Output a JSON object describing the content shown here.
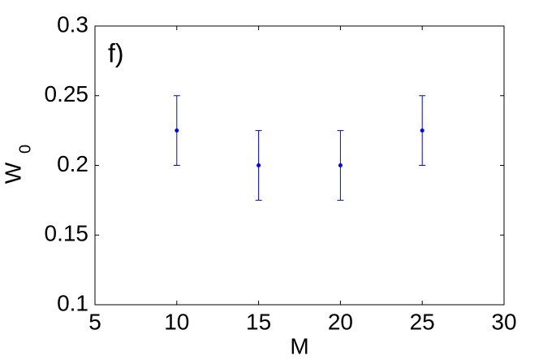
{
  "chart_data": {
    "type": "errorbar",
    "annotation": "f)",
    "xlabel": "M",
    "ylabel": "W",
    "ylabel_subscript": "0",
    "x": [
      10,
      15,
      20,
      25
    ],
    "values": [
      0.225,
      0.2,
      0.2,
      0.225
    ],
    "errors": [
      0.025,
      0.025,
      0.025,
      0.025
    ],
    "color": "#0000ff",
    "xlim": [
      5,
      30
    ],
    "xticks": [
      5,
      10,
      15,
      20,
      25,
      30
    ],
    "ylim": [
      0.1,
      0.3
    ],
    "yticks": [
      0.1,
      0.15,
      0.2,
      0.25,
      0.3
    ],
    "grid": false
  }
}
